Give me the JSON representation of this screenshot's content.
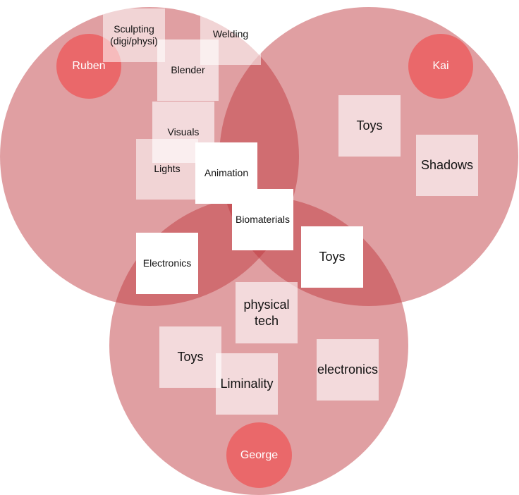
{
  "colors": {
    "circle_fill": "rgba(190,55,60,0.48)",
    "person_fill": "#ea686a",
    "note_text": "#111111"
  },
  "people": {
    "ruben": "Ruben",
    "kai": "Kai",
    "george": "George"
  },
  "notes": {
    "sculpting": "Sculpting\n(digi/physi)",
    "welding": "Welding",
    "blender": "Blender",
    "visuals": "Visuals",
    "lights": "Lights",
    "animation": "Animation",
    "biomaterials": "Biomaterials",
    "electronics_upper": "Electronics",
    "toys_kai": "Toys",
    "shadows": "Shadows",
    "toys_center": "Toys",
    "physical_tech": "physical\ntech",
    "toys_george": "Toys",
    "liminality": "Liminality",
    "electronics_lower": "electronics"
  }
}
